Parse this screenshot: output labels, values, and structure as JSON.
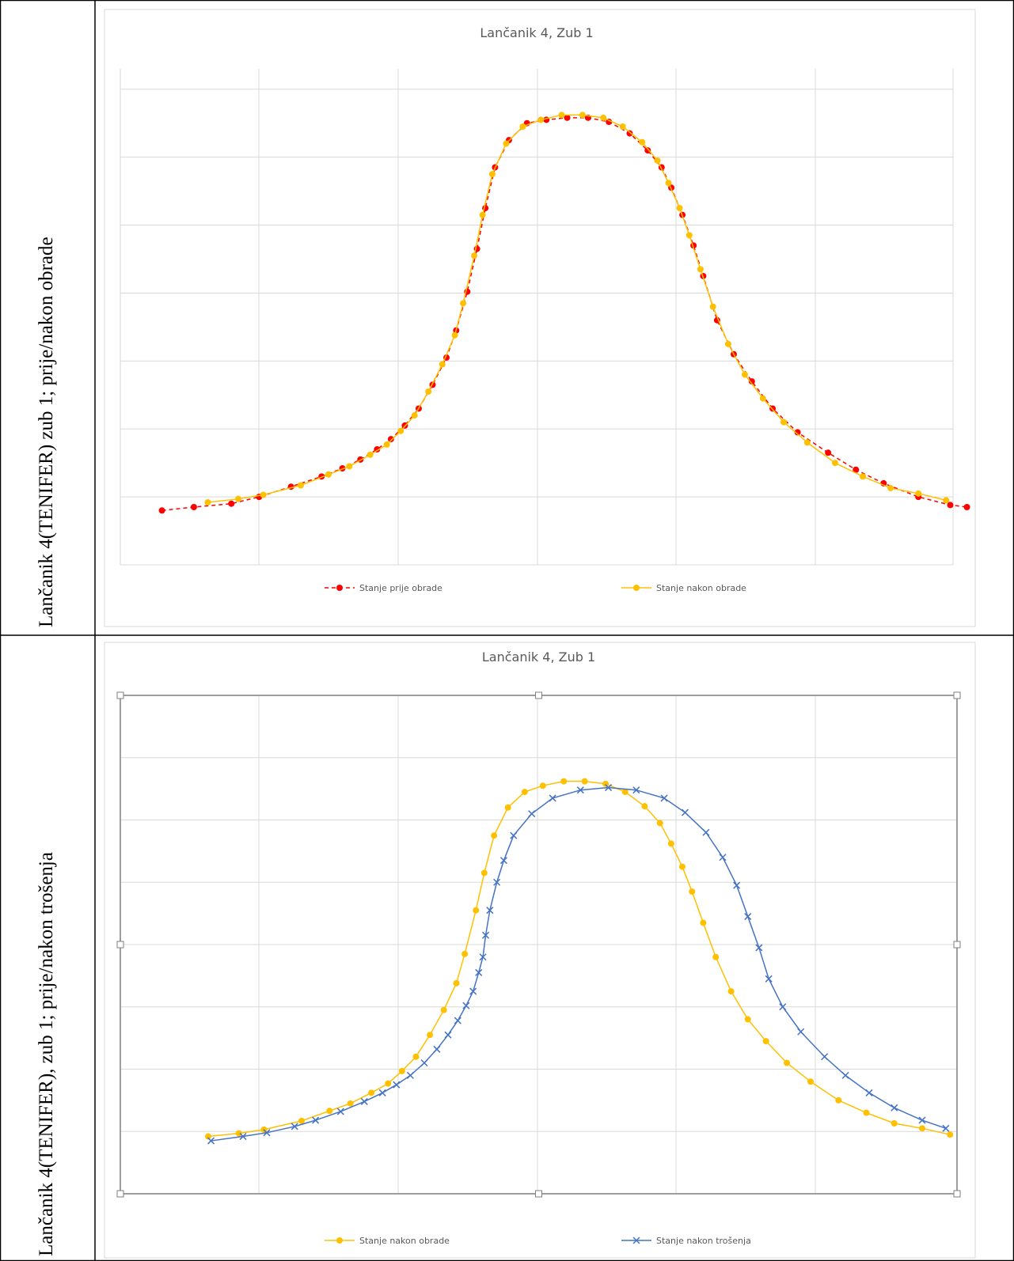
{
  "table": {
    "rows": [
      {
        "label": "Lančanik 4(TENIFER) zub 1; prije/nakon obrade"
      },
      {
        "label": "Lančanik 4(TENIFER), zub 1; prije/nakon trošenja"
      }
    ]
  },
  "colors": {
    "red_series": "#ff0000",
    "orange_series": "#ffc000",
    "blue_series": "#4472c4",
    "grid": "#d9d9d9",
    "title_text": "#595959"
  },
  "chart_data": [
    {
      "type": "scatter",
      "title": "Lančanik 4, Zub 1",
      "xlabel": "",
      "ylabel": "",
      "xlim": [
        0,
        6
      ],
      "ylim": [
        0,
        7.3
      ],
      "grid": true,
      "legend_position": "bottom",
      "series": [
        {
          "name": "Stanje prije obrade",
          "line": "dashed",
          "marker": "circle",
          "color": "#ff0000",
          "points": [
            [
              0.3,
              0.8
            ],
            [
              0.53,
              0.85
            ],
            [
              0.8,
              0.9
            ],
            [
              1.0,
              1.0
            ],
            [
              1.23,
              1.15
            ],
            [
              1.45,
              1.3
            ],
            [
              1.6,
              1.42
            ],
            [
              1.73,
              1.55
            ],
            [
              1.85,
              1.7
            ],
            [
              1.95,
              1.85
            ],
            [
              2.05,
              2.05
            ],
            [
              2.15,
              2.3
            ],
            [
              2.25,
              2.65
            ],
            [
              2.35,
              3.05
            ],
            [
              2.42,
              3.45
            ],
            [
              2.5,
              4.02
            ],
            [
              2.57,
              4.65
            ],
            [
              2.63,
              5.25
            ],
            [
              2.7,
              5.85
            ],
            [
              2.8,
              6.25
            ],
            [
              2.93,
              6.5
            ],
            [
              3.07,
              6.55
            ],
            [
              3.22,
              6.58
            ],
            [
              3.37,
              6.58
            ],
            [
              3.52,
              6.52
            ],
            [
              3.67,
              6.35
            ],
            [
              3.8,
              6.1
            ],
            [
              3.9,
              5.85
            ],
            [
              3.97,
              5.55
            ],
            [
              4.05,
              5.15
            ],
            [
              4.13,
              4.7
            ],
            [
              4.2,
              4.25
            ],
            [
              4.3,
              3.6
            ],
            [
              4.42,
              3.1
            ],
            [
              4.55,
              2.7
            ],
            [
              4.7,
              2.3
            ],
            [
              4.88,
              1.95
            ],
            [
              5.1,
              1.65
            ],
            [
              5.3,
              1.4
            ],
            [
              5.5,
              1.2
            ],
            [
              5.75,
              1.0
            ],
            [
              5.98,
              0.88
            ],
            [
              6.1,
              0.85
            ]
          ]
        },
        {
          "name": "Stanje nakon obrade",
          "line": "solid",
          "marker": "circle",
          "color": "#ffc000",
          "points": [
            [
              0.63,
              0.92
            ],
            [
              0.85,
              0.97
            ],
            [
              1.03,
              1.03
            ],
            [
              1.3,
              1.17
            ],
            [
              1.5,
              1.33
            ],
            [
              1.65,
              1.45
            ],
            [
              1.8,
              1.62
            ],
            [
              1.92,
              1.77
            ],
            [
              2.02,
              1.97
            ],
            [
              2.12,
              2.2
            ],
            [
              2.22,
              2.55
            ],
            [
              2.32,
              2.95
            ],
            [
              2.41,
              3.38
            ],
            [
              2.47,
              3.85
            ],
            [
              2.55,
              4.55
            ],
            [
              2.61,
              5.15
            ],
            [
              2.68,
              5.75
            ],
            [
              2.78,
              6.2
            ],
            [
              2.9,
              6.45
            ],
            [
              3.03,
              6.55
            ],
            [
              3.18,
              6.62
            ],
            [
              3.33,
              6.62
            ],
            [
              3.48,
              6.58
            ],
            [
              3.62,
              6.45
            ],
            [
              3.76,
              6.22
            ],
            [
              3.87,
              5.95
            ],
            [
              3.95,
              5.62
            ],
            [
              4.03,
              5.25
            ],
            [
              4.1,
              4.85
            ],
            [
              4.18,
              4.35
            ],
            [
              4.27,
              3.8
            ],
            [
              4.38,
              3.25
            ],
            [
              4.5,
              2.8
            ],
            [
              4.63,
              2.45
            ],
            [
              4.78,
              2.1
            ],
            [
              4.95,
              1.8
            ],
            [
              5.15,
              1.5
            ],
            [
              5.35,
              1.3
            ],
            [
              5.55,
              1.13
            ],
            [
              5.75,
              1.05
            ],
            [
              5.95,
              0.95
            ]
          ]
        }
      ]
    },
    {
      "type": "scatter",
      "title": "Lančanik 4, Zub 1",
      "xlabel": "",
      "ylabel": "",
      "xlim": [
        0,
        6
      ],
      "ylim": [
        0,
        8
      ],
      "grid": true,
      "legend_position": "bottom",
      "series": [
        {
          "name": "Stanje nakon obrade",
          "line": "solid",
          "marker": "circle",
          "color": "#ffc000",
          "points": [
            [
              0.63,
              0.92
            ],
            [
              0.85,
              0.97
            ],
            [
              1.03,
              1.03
            ],
            [
              1.3,
              1.17
            ],
            [
              1.5,
              1.33
            ],
            [
              1.65,
              1.45
            ],
            [
              1.8,
              1.62
            ],
            [
              1.92,
              1.77
            ],
            [
              2.02,
              1.97
            ],
            [
              2.12,
              2.2
            ],
            [
              2.22,
              2.55
            ],
            [
              2.32,
              2.95
            ],
            [
              2.41,
              3.38
            ],
            [
              2.47,
              3.85
            ],
            [
              2.55,
              4.55
            ],
            [
              2.61,
              5.15
            ],
            [
              2.68,
              5.75
            ],
            [
              2.78,
              6.2
            ],
            [
              2.9,
              6.45
            ],
            [
              3.03,
              6.55
            ],
            [
              3.18,
              6.62
            ],
            [
              3.33,
              6.62
            ],
            [
              3.48,
              6.58
            ],
            [
              3.62,
              6.45
            ],
            [
              3.76,
              6.22
            ],
            [
              3.87,
              5.95
            ],
            [
              3.95,
              5.62
            ],
            [
              4.03,
              5.25
            ],
            [
              4.1,
              4.85
            ],
            [
              4.18,
              4.35
            ],
            [
              4.27,
              3.8
            ],
            [
              4.38,
              3.25
            ],
            [
              4.5,
              2.8
            ],
            [
              4.63,
              2.45
            ],
            [
              4.78,
              2.1
            ],
            [
              4.95,
              1.8
            ],
            [
              5.15,
              1.5
            ],
            [
              5.35,
              1.3
            ],
            [
              5.55,
              1.13
            ],
            [
              5.75,
              1.05
            ],
            [
              5.95,
              0.95
            ]
          ]
        },
        {
          "name": "Stanje nakon trošenja",
          "line": "solid",
          "marker": "x",
          "color": "#4472c4",
          "points": [
            [
              0.65,
              0.85
            ],
            [
              0.88,
              0.92
            ],
            [
              1.05,
              0.98
            ],
            [
              1.25,
              1.08
            ],
            [
              1.4,
              1.18
            ],
            [
              1.58,
              1.32
            ],
            [
              1.75,
              1.48
            ],
            [
              1.88,
              1.62
            ],
            [
              1.98,
              1.75
            ],
            [
              2.08,
              1.9
            ],
            [
              2.18,
              2.1
            ],
            [
              2.27,
              2.32
            ],
            [
              2.35,
              2.55
            ],
            [
              2.42,
              2.78
            ],
            [
              2.48,
              3.02
            ],
            [
              2.53,
              3.25
            ],
            [
              2.57,
              3.55
            ],
            [
              2.6,
              3.8
            ],
            [
              2.62,
              4.15
            ],
            [
              2.65,
              4.55
            ],
            [
              2.7,
              5.0
            ],
            [
              2.75,
              5.35
            ],
            [
              2.82,
              5.75
            ],
            [
              2.95,
              6.1
            ],
            [
              3.1,
              6.35
            ],
            [
              3.3,
              6.48
            ],
            [
              3.5,
              6.52
            ],
            [
              3.7,
              6.48
            ],
            [
              3.9,
              6.35
            ],
            [
              4.05,
              6.12
            ],
            [
              4.2,
              5.8
            ],
            [
              4.32,
              5.4
            ],
            [
              4.42,
              4.95
            ],
            [
              4.5,
              4.45
            ],
            [
              4.58,
              3.95
            ],
            [
              4.65,
              3.45
            ],
            [
              4.75,
              3.0
            ],
            [
              4.88,
              2.6
            ],
            [
              5.05,
              2.2
            ],
            [
              5.2,
              1.9
            ],
            [
              5.37,
              1.62
            ],
            [
              5.55,
              1.38
            ],
            [
              5.75,
              1.18
            ],
            [
              5.92,
              1.05
            ]
          ]
        }
      ]
    }
  ]
}
